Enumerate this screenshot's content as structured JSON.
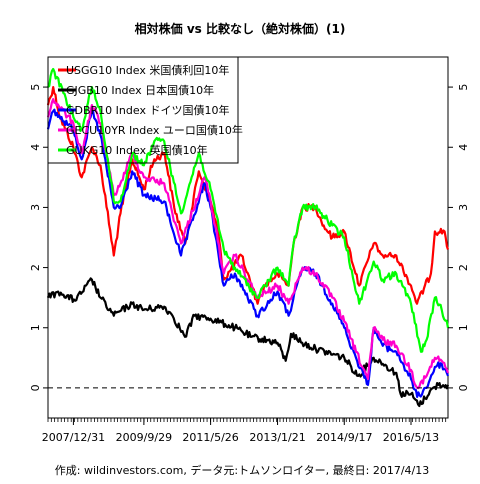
{
  "chart_data": {
    "type": "line",
    "title": "相対株価 vs 比較なし（絶対株価）(1)",
    "caption": "作成: wildinvestors.com, データ元:トムソンロイター, 最終日: 2017/4/13",
    "xlabel": "",
    "ylabel": "",
    "x_tick_labels": [
      "2007/12/31",
      "2009/9/29",
      "2011/5/26",
      "2013/1/21",
      "2014/9/17",
      "2016/5/13"
    ],
    "x_tick_dates": [
      "2007-12-31",
      "2009-09-29",
      "2011-05-26",
      "2013-01-21",
      "2014-09-17",
      "2016-05-13"
    ],
    "x_range": [
      "2007-05-15",
      "2017-04-13"
    ],
    "ylim": [
      -0.5,
      5.5
    ],
    "y_ticks": [
      0,
      1,
      2,
      3,
      4,
      5
    ],
    "y_tick_labels": [
      "0",
      "1",
      "2",
      "3",
      "4",
      "5"
    ],
    "y_axes": [
      "left",
      "right"
    ],
    "reference_line": {
      "y": 0,
      "style": "dashed"
    },
    "grid": false,
    "legend_position": "top-left",
    "series": [
      {
        "name": "USGG10 Index 米国債利回10年",
        "color": "#ff0000",
        "points": [
          [
            "2007-05-15",
            4.7
          ],
          [
            "2007-07-01",
            5.0
          ],
          [
            "2007-09-01",
            4.5
          ],
          [
            "2007-12-31",
            4.0
          ],
          [
            "2008-03-15",
            3.5
          ],
          [
            "2008-06-15",
            4.0
          ],
          [
            "2008-09-01",
            3.7
          ],
          [
            "2008-12-31",
            2.2
          ],
          [
            "2009-03-01",
            2.9
          ],
          [
            "2009-06-15",
            3.8
          ],
          [
            "2009-09-29",
            3.3
          ],
          [
            "2010-01-01",
            3.8
          ],
          [
            "2010-04-05",
            3.9
          ],
          [
            "2010-06-30",
            3.0
          ],
          [
            "2010-10-08",
            2.4
          ],
          [
            "2011-02-08",
            3.6
          ],
          [
            "2011-05-26",
            3.1
          ],
          [
            "2011-08-01",
            2.6
          ],
          [
            "2011-09-22",
            1.8
          ],
          [
            "2012-03-01",
            2.2
          ],
          [
            "2012-07-24",
            1.4
          ],
          [
            "2012-10-01",
            1.7
          ],
          [
            "2013-01-21",
            1.9
          ],
          [
            "2013-05-01",
            1.7
          ],
          [
            "2013-06-15",
            2.4
          ],
          [
            "2013-09-05",
            3.0
          ],
          [
            "2013-12-31",
            3.0
          ],
          [
            "2014-03-15",
            2.7
          ],
          [
            "2014-06-01",
            2.5
          ],
          [
            "2014-09-17",
            2.6
          ],
          [
            "2015-01-30",
            1.7
          ],
          [
            "2015-06-10",
            2.4
          ],
          [
            "2015-09-01",
            2.2
          ],
          [
            "2016-01-01",
            2.2
          ],
          [
            "2016-05-13",
            1.7
          ],
          [
            "2016-07-06",
            1.4
          ],
          [
            "2016-11-09",
            1.9
          ],
          [
            "2016-12-15",
            2.6
          ],
          [
            "2017-03-13",
            2.6
          ],
          [
            "2017-04-13",
            2.3
          ]
        ]
      },
      {
        "name": "GJGB10 Index 日本国債10年",
        "color": "#000000",
        "points": [
          [
            "2007-05-15",
            1.5
          ],
          [
            "2007-08-15",
            1.6
          ],
          [
            "2007-10-01",
            1.55
          ],
          [
            "2008-01-15",
            1.45
          ],
          [
            "2008-06-15",
            1.8
          ],
          [
            "2008-09-01",
            1.5
          ],
          [
            "2008-12-31",
            1.2
          ],
          [
            "2009-06-15",
            1.4
          ],
          [
            "2009-09-29",
            1.3
          ],
          [
            "2010-04-01",
            1.35
          ],
          [
            "2010-06-15",
            1.2
          ],
          [
            "2010-10-06",
            0.85
          ],
          [
            "2011-01-01",
            1.2
          ],
          [
            "2011-05-26",
            1.15
          ],
          [
            "2012-01-01",
            1.0
          ],
          [
            "2012-06-01",
            0.85
          ],
          [
            "2013-01-21",
            0.75
          ],
          [
            "2013-04-05",
            0.45
          ],
          [
            "2013-05-23",
            0.9
          ],
          [
            "2013-09-01",
            0.75
          ],
          [
            "2014-01-01",
            0.65
          ],
          [
            "2014-09-17",
            0.5
          ],
          [
            "2015-01-20",
            0.2
          ],
          [
            "2015-06-10",
            0.5
          ],
          [
            "2015-09-01",
            0.4
          ],
          [
            "2016-01-01",
            0.25
          ],
          [
            "2016-02-09",
            -0.1
          ],
          [
            "2016-05-13",
            -0.1
          ],
          [
            "2016-07-27",
            -0.3
          ],
          [
            "2016-11-01",
            -0.05
          ],
          [
            "2017-01-15",
            0.05
          ],
          [
            "2017-04-13",
            0.05
          ]
        ]
      },
      {
        "name": "GDBR10 Index ドイツ国債10年",
        "color": "#0000ff",
        "points": [
          [
            "2007-05-15",
            4.3
          ],
          [
            "2007-07-01",
            4.6
          ],
          [
            "2007-12-31",
            4.3
          ],
          [
            "2008-03-15",
            3.8
          ],
          [
            "2008-06-15",
            4.6
          ],
          [
            "2008-09-01",
            4.2
          ],
          [
            "2008-12-31",
            3.0
          ],
          [
            "2009-03-01",
            3.0
          ],
          [
            "2009-06-15",
            3.6
          ],
          [
            "2009-09-29",
            3.2
          ],
          [
            "2010-04-01",
            3.1
          ],
          [
            "2010-08-31",
            2.2
          ],
          [
            "2011-04-01",
            3.4
          ],
          [
            "2011-05-26",
            3.0
          ],
          [
            "2011-09-22",
            1.7
          ],
          [
            "2012-01-01",
            1.9
          ],
          [
            "2012-07-23",
            1.2
          ],
          [
            "2013-01-21",
            1.6
          ],
          [
            "2013-05-01",
            1.2
          ],
          [
            "2013-09-05",
            2.0
          ],
          [
            "2013-12-31",
            1.9
          ],
          [
            "2014-06-01",
            1.4
          ],
          [
            "2014-09-17",
            1.0
          ],
          [
            "2015-01-01",
            0.5
          ],
          [
            "2015-04-20",
            0.05
          ],
          [
            "2015-06-10",
            1.0
          ],
          [
            "2015-09-01",
            0.7
          ],
          [
            "2016-01-01",
            0.6
          ],
          [
            "2016-05-13",
            0.15
          ],
          [
            "2016-07-08",
            -0.15
          ],
          [
            "2016-10-01",
            0.0
          ],
          [
            "2016-12-15",
            0.35
          ],
          [
            "2017-02-15",
            0.4
          ],
          [
            "2017-04-13",
            0.2
          ]
        ]
      },
      {
        "name": "GECU10YR Index ユーロ国債10年",
        "color": "#ff00cc",
        "points": [
          [
            "2007-05-15",
            4.5
          ],
          [
            "2007-07-01",
            4.8
          ],
          [
            "2007-12-31",
            4.4
          ],
          [
            "2008-03-15",
            3.9
          ],
          [
            "2008-06-15",
            4.7
          ],
          [
            "2008-09-01",
            4.4
          ],
          [
            "2008-12-31",
            3.2
          ],
          [
            "2009-03-01",
            3.4
          ],
          [
            "2009-06-15",
            3.9
          ],
          [
            "2009-09-29",
            3.5
          ],
          [
            "2010-04-01",
            3.4
          ],
          [
            "2010-08-31",
            2.4
          ],
          [
            "2011-04-01",
            3.5
          ],
          [
            "2011-05-26",
            3.1
          ],
          [
            "2011-09-22",
            1.9
          ],
          [
            "2012-01-01",
            2.2
          ],
          [
            "2012-07-23",
            1.5
          ],
          [
            "2013-01-21",
            1.7
          ],
          [
            "2013-05-01",
            1.4
          ],
          [
            "2013-09-05",
            2.0
          ],
          [
            "2013-12-31",
            1.9
          ],
          [
            "2014-06-01",
            1.5
          ],
          [
            "2014-09-17",
            1.1
          ],
          [
            "2015-01-01",
            0.6
          ],
          [
            "2015-04-20",
            0.15
          ],
          [
            "2015-06-10",
            1.0
          ],
          [
            "2015-09-01",
            0.8
          ],
          [
            "2016-01-01",
            0.7
          ],
          [
            "2016-05-13",
            0.3
          ],
          [
            "2016-07-08",
            0.0
          ],
          [
            "2016-10-01",
            0.2
          ],
          [
            "2016-12-15",
            0.5
          ],
          [
            "2017-02-15",
            0.45
          ],
          [
            "2017-04-13",
            0.25
          ]
        ]
      },
      {
        "name": "GUKG10 Index 英国債10年",
        "color": "#00ff00",
        "points": [
          [
            "2007-05-15",
            5.0
          ],
          [
            "2007-07-01",
            5.3
          ],
          [
            "2007-10-01",
            4.9
          ],
          [
            "2007-12-31",
            4.5
          ],
          [
            "2008-03-15",
            4.3
          ],
          [
            "2008-06-15",
            5.0
          ],
          [
            "2008-09-01",
            4.6
          ],
          [
            "2008-12-31",
            3.1
          ],
          [
            "2009-03-01",
            3.1
          ],
          [
            "2009-06-15",
            3.9
          ],
          [
            "2009-09-29",
            3.7
          ],
          [
            "2010-01-01",
            4.1
          ],
          [
            "2010-04-01",
            4.1
          ],
          [
            "2010-08-31",
            2.9
          ],
          [
            "2011-02-08",
            3.9
          ],
          [
            "2011-05-26",
            3.3
          ],
          [
            "2011-09-22",
            2.3
          ],
          [
            "2012-01-01",
            2.0
          ],
          [
            "2012-07-23",
            1.5
          ],
          [
            "2012-10-01",
            1.7
          ],
          [
            "2013-01-21",
            2.0
          ],
          [
            "2013-05-01",
            1.7
          ],
          [
            "2013-06-15",
            2.4
          ],
          [
            "2013-09-05",
            3.0
          ],
          [
            "2013-12-31",
            3.0
          ],
          [
            "2014-06-01",
            2.7
          ],
          [
            "2014-09-17",
            2.5
          ],
          [
            "2015-01-30",
            1.4
          ],
          [
            "2015-06-10",
            2.1
          ],
          [
            "2015-09-01",
            1.8
          ],
          [
            "2016-01-01",
            1.9
          ],
          [
            "2016-05-13",
            1.4
          ],
          [
            "2016-08-12",
            0.6
          ],
          [
            "2016-10-01",
            0.8
          ],
          [
            "2016-12-15",
            1.5
          ],
          [
            "2017-02-15",
            1.3
          ],
          [
            "2017-04-13",
            1.0
          ]
        ]
      }
    ]
  }
}
